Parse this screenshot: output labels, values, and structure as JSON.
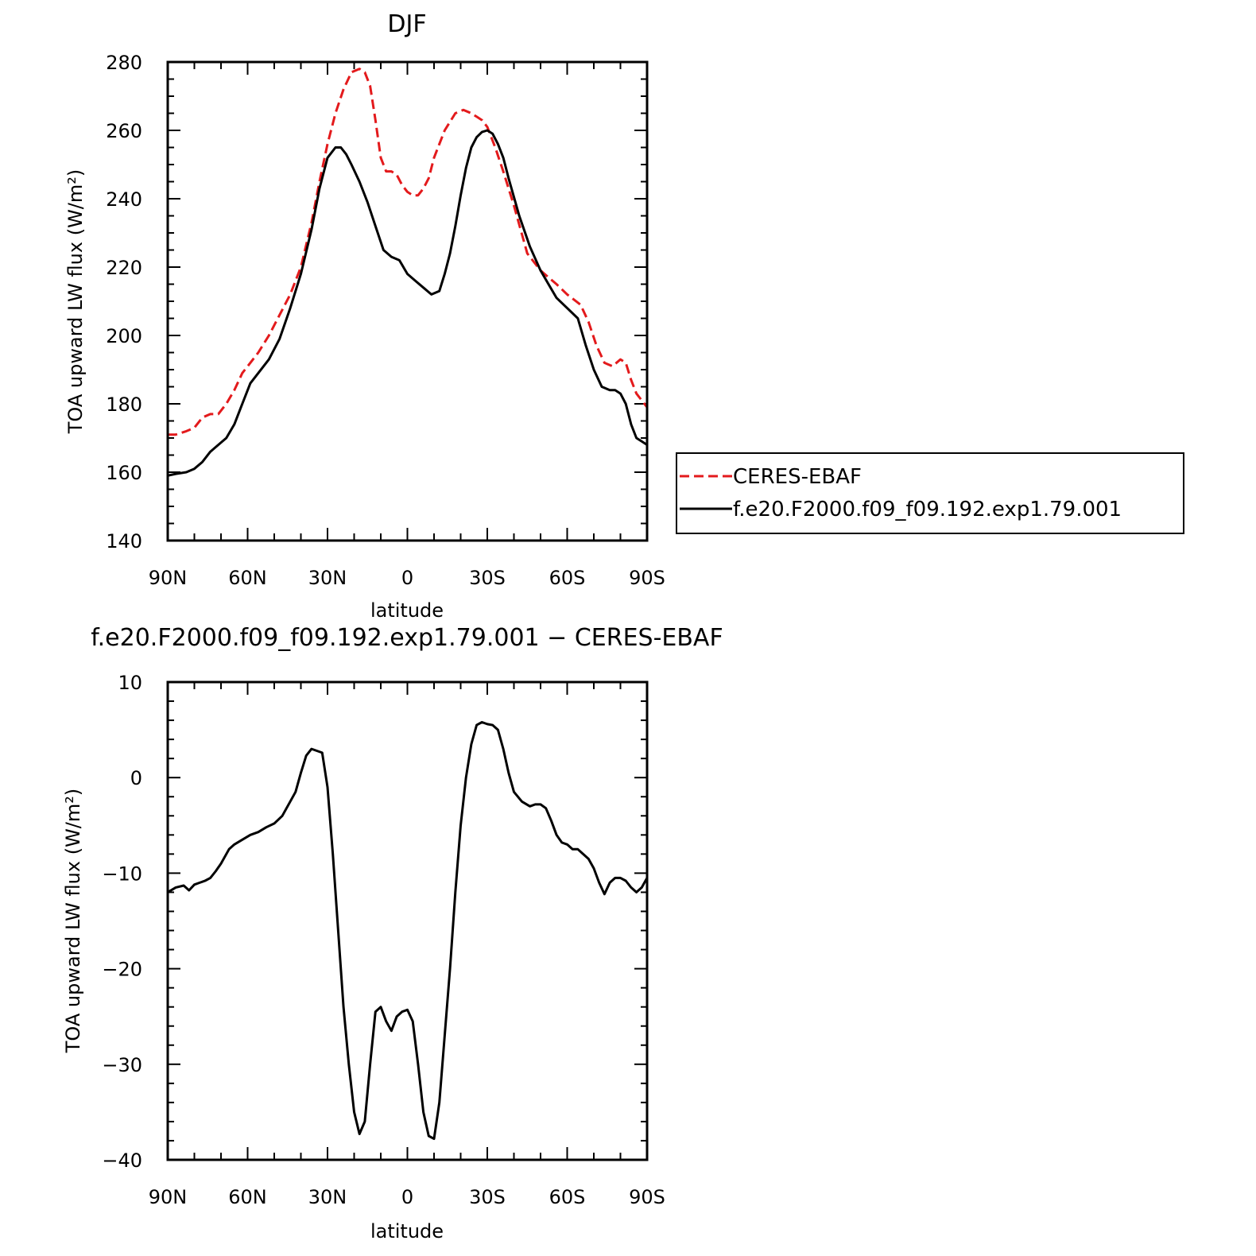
{
  "chart_data": [
    {
      "type": "line",
      "title": "DJF",
      "xlabel": "latitude",
      "ylabel": "TOA upward LW flux (W/m²)",
      "xlim": [
        -90,
        90
      ],
      "ylim": [
        140,
        280
      ],
      "x_ticks": [
        -90,
        -60,
        -30,
        0,
        30,
        60,
        90
      ],
      "x_tick_labels": [
        "90N",
        "60N",
        "30N",
        "0",
        "30S",
        "60S",
        "90S"
      ],
      "y_ticks": [
        140,
        160,
        180,
        200,
        220,
        240,
        260,
        280
      ],
      "y_tick_labels": [
        "140",
        "160",
        "180",
        "200",
        "220",
        "240",
        "260",
        "280"
      ],
      "legend_position": "right, outside plot",
      "series": [
        {
          "name": "CERES-EBAF",
          "color": "#e31a1c",
          "dash": "dashed",
          "x": [
            -90,
            -87,
            -83,
            -80,
            -77,
            -74,
            -71,
            -68,
            -65,
            -62,
            -59,
            -56,
            -52,
            -48,
            -44,
            -40,
            -36,
            -33,
            -30,
            -27,
            -24,
            -21,
            -18,
            -16,
            -14,
            -12,
            -10,
            -8,
            -6,
            -4,
            -2,
            0,
            2,
            4,
            6,
            8,
            10,
            14,
            18,
            21,
            24,
            26,
            28,
            30,
            33,
            36,
            40,
            45,
            50,
            53,
            56,
            60,
            65,
            68,
            71,
            74,
            77,
            80,
            82,
            84,
            86,
            88,
            90
          ],
          "y": [
            171,
            171,
            172,
            173,
            176,
            177,
            177,
            180,
            184,
            189,
            192,
            195,
            200,
            206,
            212,
            220,
            233,
            245,
            256,
            265,
            272,
            277,
            278,
            277,
            273,
            263,
            252,
            248,
            248,
            247,
            244,
            242,
            241,
            241,
            243,
            246,
            252,
            260,
            265,
            266,
            265,
            264,
            263,
            261,
            255,
            248,
            238,
            224,
            219,
            217,
            215,
            212,
            209,
            204,
            197,
            192,
            191,
            193,
            192,
            187,
            183,
            181,
            179
          ]
        },
        {
          "name": "f.e20.F2000.f09_f09.192.exp1.79.001",
          "color": "#000000",
          "dash": "solid",
          "x": [
            -90,
            -87,
            -83,
            -80,
            -77,
            -74,
            -71,
            -68,
            -65,
            -62,
            -59,
            -56,
            -52,
            -48,
            -44,
            -40,
            -36,
            -33,
            -30,
            -27,
            -25,
            -23,
            -21,
            -18,
            -15,
            -12,
            -9,
            -6,
            -3,
            0,
            3,
            6,
            9,
            12,
            14,
            16,
            18,
            20,
            22,
            24,
            26,
            28,
            30,
            32,
            34,
            36,
            38,
            42,
            46,
            50,
            53,
            56,
            60,
            64,
            67,
            70,
            73,
            76,
            78,
            80,
            82,
            84,
            86,
            88,
            90
          ],
          "y": [
            159,
            159.5,
            160,
            161,
            163,
            166,
            168,
            170,
            174,
            180,
            186,
            189,
            193,
            199,
            208,
            218,
            231,
            243,
            252,
            255,
            255,
            253,
            250,
            245,
            239,
            232,
            225,
            223,
            222,
            218,
            216,
            214,
            212,
            213,
            218,
            224,
            232,
            241,
            249,
            255,
            258,
            259.5,
            260,
            259,
            256,
            252,
            246,
            235,
            226,
            219,
            215,
            211,
            208,
            205,
            197,
            190,
            185,
            184,
            184,
            183,
            180,
            174,
            170,
            169,
            168
          ]
        }
      ]
    },
    {
      "type": "line",
      "title": "f.e20.F2000.f09_f09.192.exp1.79.001 − CERES-EBAF",
      "xlabel": "latitude",
      "ylabel": "TOA upward LW flux (W/m²)",
      "xlim": [
        -90,
        90
      ],
      "ylim": [
        -40,
        10
      ],
      "x_ticks": [
        -90,
        -60,
        -30,
        0,
        30,
        60,
        90
      ],
      "x_tick_labels": [
        "90N",
        "60N",
        "30N",
        "0",
        "30S",
        "60S",
        "90S"
      ],
      "y_ticks": [
        -40,
        -30,
        -20,
        -10,
        0,
        10
      ],
      "y_tick_labels": [
        "−40",
        "−30",
        "−20",
        "−10",
        "0",
        "10"
      ],
      "series": [
        {
          "name": "",
          "color": "#000000",
          "dash": "solid",
          "x": [
            -90,
            -87,
            -84,
            -82,
            -80,
            -78,
            -76,
            -74,
            -72,
            -70,
            -67,
            -65,
            -62,
            -59,
            -56,
            -53,
            -50,
            -47,
            -44,
            -42,
            -40,
            -38,
            -36,
            -34,
            -32,
            -30,
            -28,
            -26,
            -24,
            -22,
            -20,
            -18,
            -16,
            -14,
            -12,
            -10,
            -8,
            -6,
            -4,
            -2,
            0,
            2,
            4,
            6,
            8,
            10,
            12,
            14,
            16,
            18,
            20,
            22,
            24,
            26,
            28,
            30,
            32,
            34,
            36,
            38,
            40,
            43,
            46,
            48,
            50,
            52,
            54,
            56,
            58,
            60,
            62,
            64,
            66,
            68,
            70,
            72,
            74,
            76,
            78,
            80,
            82,
            84,
            86,
            88,
            90
          ],
          "y": [
            -12,
            -11.5,
            -11.3,
            -11.8,
            -11.2,
            -11,
            -10.8,
            -10.5,
            -9.8,
            -9,
            -7.5,
            -7,
            -6.5,
            -6,
            -5.7,
            -5.2,
            -4.8,
            -4,
            -2.5,
            -1.5,
            0.5,
            2.3,
            3,
            2.8,
            2.6,
            -1,
            -8,
            -16,
            -24,
            -30,
            -35,
            -37.3,
            -36,
            -30,
            -24.5,
            -24,
            -25.5,
            -26.5,
            -25,
            -24.5,
            -24.3,
            -25.5,
            -30,
            -35,
            -37.5,
            -37.8,
            -34,
            -27,
            -20,
            -12,
            -5,
            0,
            3.5,
            5.5,
            5.8,
            5.6,
            5.5,
            5,
            3,
            0.5,
            -1.5,
            -2.5,
            -3,
            -2.8,
            -2.8,
            -3.2,
            -4.5,
            -6,
            -6.8,
            -7,
            -7.5,
            -7.5,
            -8,
            -8.5,
            -9.5,
            -11,
            -12.2,
            -11,
            -10.5,
            -10.5,
            -10.8,
            -11.5,
            -12,
            -11.5,
            -10.5
          ]
        }
      ]
    }
  ]
}
